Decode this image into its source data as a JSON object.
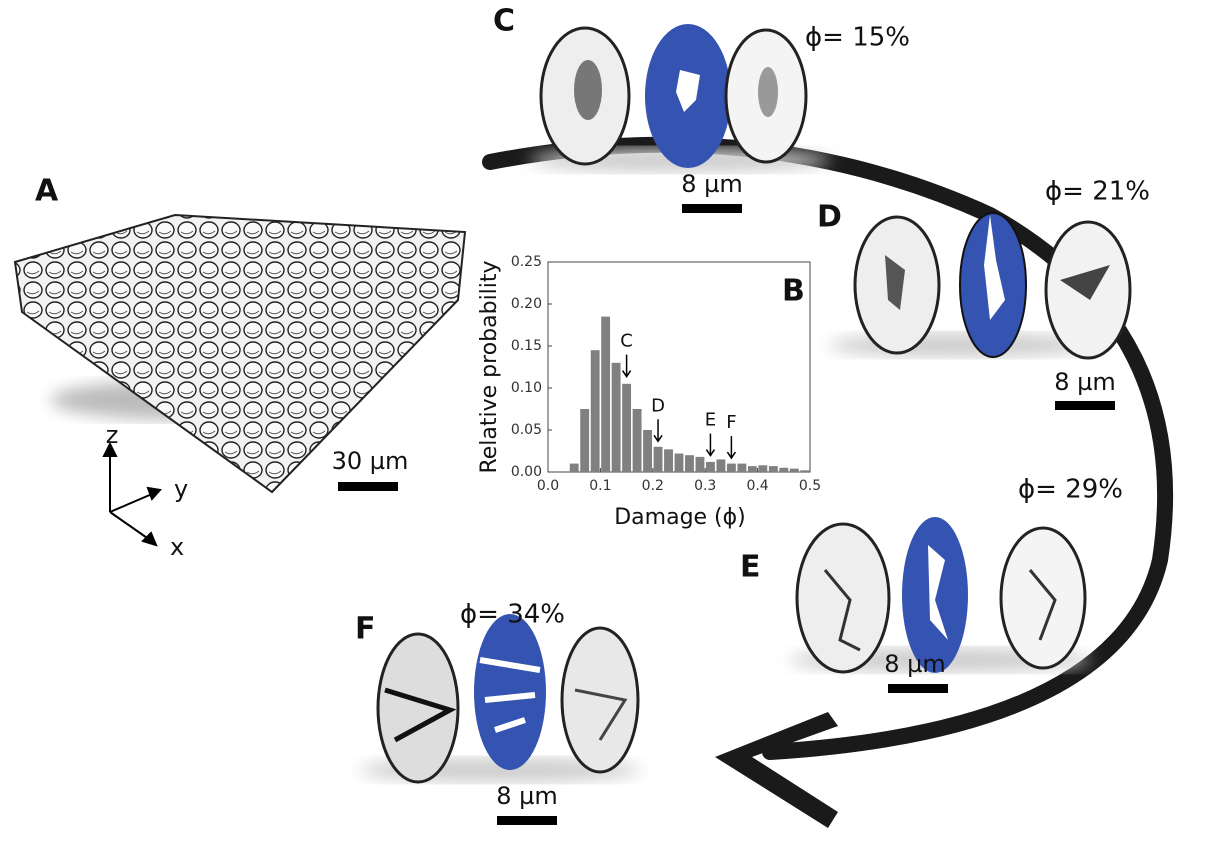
{
  "panels": {
    "a": {
      "label": "A",
      "scale_bar": "30 µm",
      "axis_z": "z",
      "axis_y": "y",
      "axis_x": "x"
    },
    "c": {
      "label": "C",
      "damage": "ϕ= 15%",
      "scale_bar": "8 µm"
    },
    "d": {
      "label": "D",
      "damage": "ϕ= 21%",
      "scale_bar": "8 µm"
    },
    "e": {
      "label": "E",
      "damage": "ϕ= 29%",
      "scale_bar": "8 µm"
    },
    "f": {
      "label": "F",
      "damage": "ϕ= 34%",
      "scale_bar": "8 µm"
    }
  },
  "chart_data": {
    "type": "histogram",
    "panel_label": "B",
    "x_label": "Damage (ϕ)",
    "y_label": "Relative probability",
    "color": "#808080",
    "bins": [
      0.04,
      0.06,
      0.08,
      0.1,
      0.12,
      0.14,
      0.16,
      0.18,
      0.2,
      0.22,
      0.24,
      0.26,
      0.28,
      0.3,
      0.32,
      0.34,
      0.36,
      0.38,
      0.4,
      0.42,
      0.44,
      0.46,
      0.48,
      0.5
    ],
    "values": [
      0.01,
      0.075,
      0.145,
      0.185,
      0.13,
      0.105,
      0.075,
      0.05,
      0.03,
      0.027,
      0.022,
      0.02,
      0.018,
      0.012,
      0.015,
      0.01,
      0.01,
      0.007,
      0.008,
      0.007,
      0.005,
      0.004,
      0.002
    ],
    "xlim": [
      0,
      0.5
    ],
    "ylim": [
      0,
      0.25
    ],
    "xticks": [
      {
        "value": 0,
        "label": "0.0"
      },
      0.1,
      0.2,
      0.3,
      0.4,
      0.5
    ],
    "yticks": [
      {
        "value": 0,
        "label": "0.00"
      },
      0.05,
      {
        "value": 0.1,
        "label": "0.10"
      },
      0.15,
      {
        "value": 0.2,
        "label": "0.20"
      },
      0.25
    ],
    "annotations": [
      {
        "text": "C",
        "x": 0.15,
        "y": 0.11
      },
      {
        "text": "D",
        "x": 0.21,
        "y": 0.033
      },
      {
        "text": "E",
        "x": 0.31,
        "y": 0.016
      },
      {
        "text": "F",
        "x": 0.35,
        "y": 0.013
      }
    ]
  }
}
